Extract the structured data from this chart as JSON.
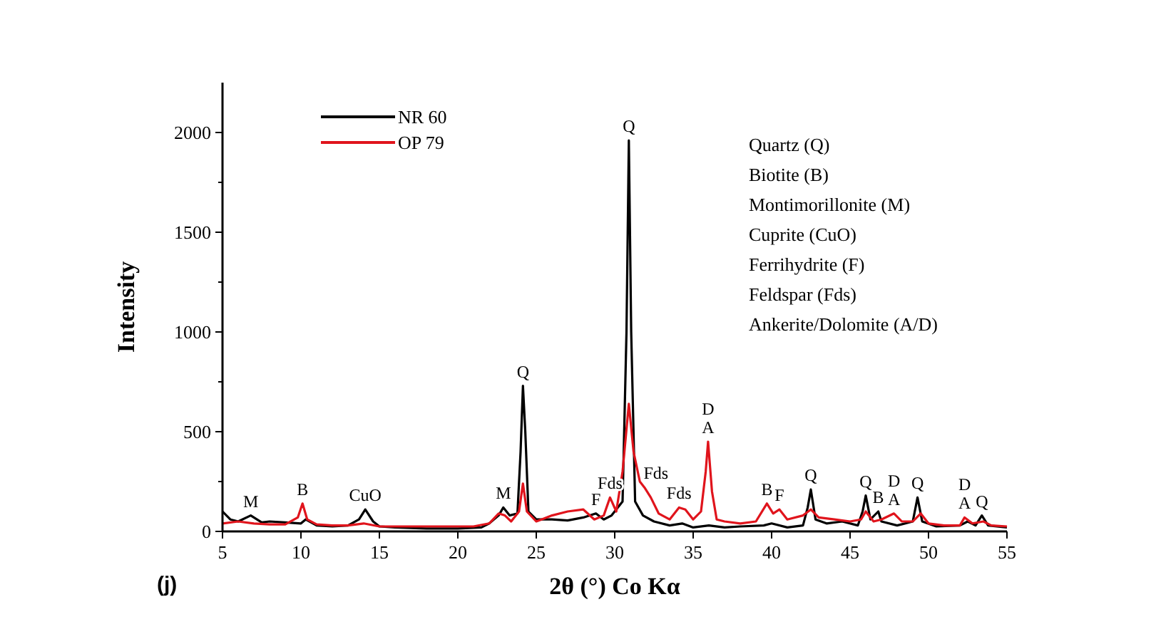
{
  "chart_data": {
    "type": "line",
    "xlabel": "2θ (°) Co Kα",
    "ylabel": "Intensity",
    "xlim": [
      5,
      55
    ],
    "xticks": [
      5,
      10,
      15,
      20,
      25,
      30,
      35,
      40,
      45,
      50,
      55
    ],
    "ylim": [
      0,
      2250
    ],
    "yticks": [
      0,
      {
        "value": 250,
        "label": null
      },
      500,
      {
        "value": 750,
        "label": null
      },
      1000,
      {
        "value": 1250,
        "label": null
      },
      1500,
      {
        "value": 1750,
        "label": null
      },
      2000
    ],
    "grid": false,
    "legend": "top left",
    "line_style": "solid",
    "series": [
      {
        "name": "NR 60",
        "color": "#000000",
        "x": [
          5,
          5.5,
          6,
          6.8,
          7.5,
          8,
          9,
          10,
          10.3,
          11,
          12,
          13,
          13.7,
          14.1,
          14.6,
          15,
          16,
          18,
          20,
          21.5,
          22,
          22.6,
          22.9,
          23.3,
          23.8,
          24,
          24.15,
          24.3,
          24.5,
          25,
          26,
          27,
          28,
          28.8,
          29.3,
          29.8,
          30.5,
          30.75,
          30.9,
          31.05,
          31.3,
          31.8,
          32.5,
          33.5,
          34.3,
          35,
          36,
          37,
          38,
          39.5,
          40,
          41,
          42,
          42.3,
          42.5,
          42.8,
          43.5,
          44.5,
          45.5,
          45.8,
          46,
          46.3,
          46.8,
          47,
          48,
          49,
          49.3,
          49.6,
          50.5,
          52,
          52.5,
          53,
          53.4,
          53.8,
          55
        ],
        "values": [
          100,
          60,
          50,
          80,
          45,
          50,
          45,
          40,
          60,
          30,
          25,
          30,
          60,
          110,
          50,
          25,
          20,
          15,
          15,
          20,
          40,
          80,
          120,
          80,
          90,
          400,
          730,
          500,
          100,
          60,
          60,
          55,
          70,
          90,
          60,
          80,
          150,
          1000,
          1960,
          1000,
          150,
          80,
          50,
          30,
          40,
          20,
          30,
          20,
          25,
          30,
          40,
          20,
          30,
          120,
          210,
          60,
          40,
          50,
          30,
          100,
          180,
          60,
          100,
          50,
          30,
          50,
          170,
          50,
          25,
          30,
          50,
          30,
          80,
          30,
          20
        ]
      },
      {
        "name": "OP 79",
        "color": "#e0141c",
        "x": [
          5,
          6,
          7,
          8,
          9,
          9.8,
          10.1,
          10.4,
          11,
          12,
          13,
          14,
          15,
          17,
          19,
          21,
          22,
          22.6,
          23,
          23.4,
          23.9,
          24.15,
          24.4,
          25,
          26,
          27,
          28,
          28.7,
          29.3,
          29.7,
          30.1,
          30.5,
          30.9,
          31.2,
          31.6,
          31.9,
          32.3,
          32.8,
          33.5,
          34.1,
          34.5,
          35,
          35.5,
          35.8,
          35.95,
          36.2,
          36.5,
          37,
          38,
          39,
          39.7,
          40.1,
          40.5,
          41,
          42,
          42.5,
          43,
          44,
          45,
          45.7,
          46,
          46.5,
          47,
          47.8,
          48.3,
          49,
          49.5,
          50,
          51,
          52,
          52.3,
          52.8,
          53.5,
          54,
          55
        ],
        "values": [
          40,
          50,
          40,
          35,
          35,
          70,
          140,
          60,
          35,
          30,
          30,
          40,
          25,
          25,
          25,
          25,
          40,
          90,
          80,
          50,
          100,
          240,
          100,
          50,
          80,
          100,
          110,
          60,
          80,
          170,
          100,
          300,
          640,
          400,
          250,
          220,
          170,
          90,
          60,
          120,
          110,
          60,
          100,
          300,
          450,
          200,
          60,
          50,
          40,
          50,
          140,
          90,
          110,
          60,
          80,
          110,
          70,
          60,
          50,
          60,
          100,
          50,
          60,
          90,
          50,
          50,
          90,
          40,
          30,
          30,
          70,
          40,
          50,
          30,
          25
        ]
      }
    ],
    "annotations": [
      {
        "text": "M",
        "x": 6.8,
        "y": 80
      },
      {
        "text": "B",
        "x": 10.1,
        "y": 140
      },
      {
        "text": "CuO",
        "x": 14.1,
        "y": 110
      },
      {
        "text": "M",
        "x": 22.9,
        "y": 120
      },
      {
        "text": "Q",
        "x": 24.15,
        "y": 730
      },
      {
        "text": "Q",
        "x": 30.9,
        "y": 1960
      },
      {
        "text": "Fds",
        "x": 29.7,
        "y": 170
      },
      {
        "text": "F",
        "x": 28.8,
        "y": 90
      },
      {
        "text": "Fds",
        "x": 31.9,
        "y": 220
      },
      {
        "text": "Fds",
        "x": 34.1,
        "y": 120
      },
      {
        "text": "D",
        "x": 35.95,
        "y": 450
      },
      {
        "text": "A",
        "x": 35.95,
        "y": 450
      },
      {
        "text": "B",
        "x": 39.7,
        "y": 140
      },
      {
        "text": "F",
        "x": 40.5,
        "y": 110
      },
      {
        "text": "Q",
        "x": 42.5,
        "y": 210
      },
      {
        "text": "Q",
        "x": 46,
        "y": 180
      },
      {
        "text": "B",
        "x": 46.8,
        "y": 100
      },
      {
        "text": "D",
        "x": 47.8,
        "y": 90
      },
      {
        "text": "A",
        "x": 47.8,
        "y": 90
      },
      {
        "text": "Q",
        "x": 49.3,
        "y": 170
      },
      {
        "text": "D",
        "x": 52.3,
        "y": 70
      },
      {
        "text": "A",
        "x": 52.3,
        "y": 70
      },
      {
        "text": "Q",
        "x": 53.4,
        "y": 80
      },
      "Quartz (Q)",
      "Biotite (B)",
      "Montimorillonite (M)",
      "Cuprite (CuO)",
      "Ferrihydrite (F)",
      "Feldspar (Fds)",
      "Ankerite/Dolomite (A/D)",
      "(j)"
    ]
  }
}
